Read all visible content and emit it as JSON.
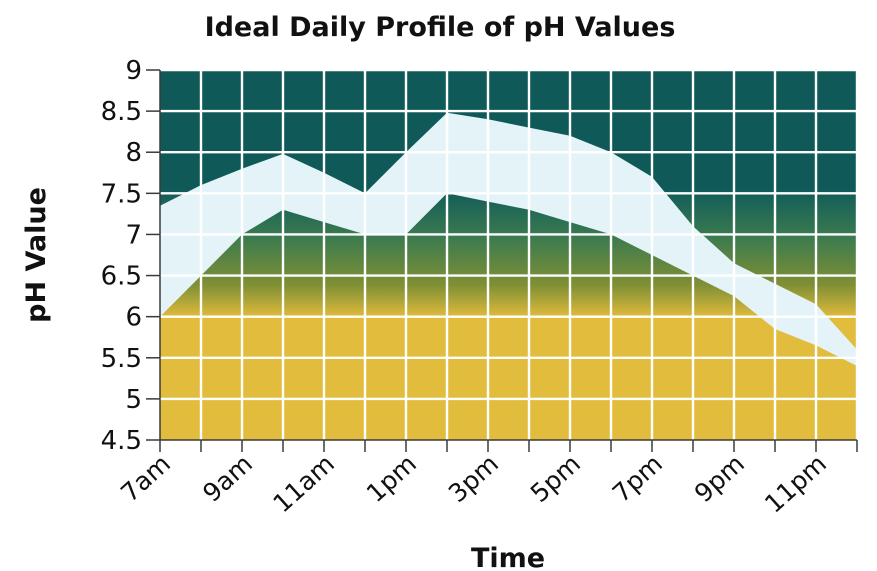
{
  "chart_data": {
    "type": "area",
    "title": "Ideal Daily Profile of pH Values",
    "xlabel": "Time",
    "ylabel": "pH Value",
    "ylim": [
      4.5,
      9
    ],
    "yticks": [
      "9",
      "8.5",
      "8",
      "7.5",
      "7",
      "6.5",
      "6",
      "5.5",
      "5",
      "4.5"
    ],
    "xticks": [
      "7am",
      "9am",
      "11am",
      "1pm",
      "3pm",
      "5pm",
      "7pm",
      "9pm",
      "11pm"
    ],
    "grid": true,
    "x": [
      7,
      8,
      9,
      10,
      11,
      12,
      13,
      14,
      15,
      16,
      17,
      18,
      19,
      20,
      21,
      22,
      23,
      24
    ],
    "series": [
      {
        "values": [
          7.35,
          7.6,
          7.8,
          7.98,
          7.75,
          7.5,
          8.0,
          8.48,
          8.4,
          8.3,
          8.2,
          8.0,
          7.7,
          7.1,
          6.65,
          6.4,
          6.15,
          5.6
        ]
      },
      {
        "values": [
          6.0,
          6.5,
          7.0,
          7.3,
          7.15,
          7.0,
          7.0,
          7.5,
          7.4,
          7.3,
          7.15,
          7.0,
          6.75,
          6.5,
          6.25,
          5.85,
          5.65,
          5.4
        ]
      }
    ],
    "colors": {
      "band": "#e4f3f8",
      "dark": "#0f5a59",
      "mid": "#3a7a50",
      "olive": "#7f8f35",
      "gold": "#e2bc3c",
      "grid": "#ffffff",
      "axis": "#3a3a3a"
    }
  }
}
